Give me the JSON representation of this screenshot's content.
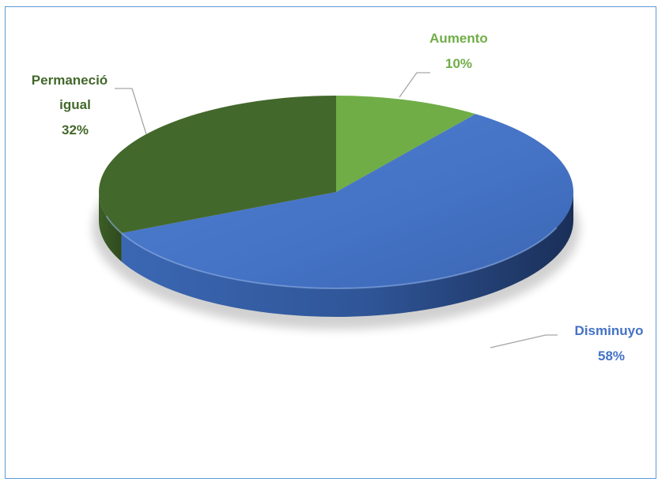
{
  "chart_data": {
    "type": "pie",
    "style": "3d",
    "slices": [
      {
        "label": "Aumento",
        "value": 10,
        "value_label": "10%",
        "color": "#70ad47"
      },
      {
        "label": "Disminuyo",
        "value": 58,
        "value_label": "58%",
        "color": "#4472c4"
      },
      {
        "label": "Permaneció igual",
        "value": 32,
        "value_label": "32%",
        "color": "#43682b"
      }
    ],
    "title": "",
    "legend": "none"
  }
}
